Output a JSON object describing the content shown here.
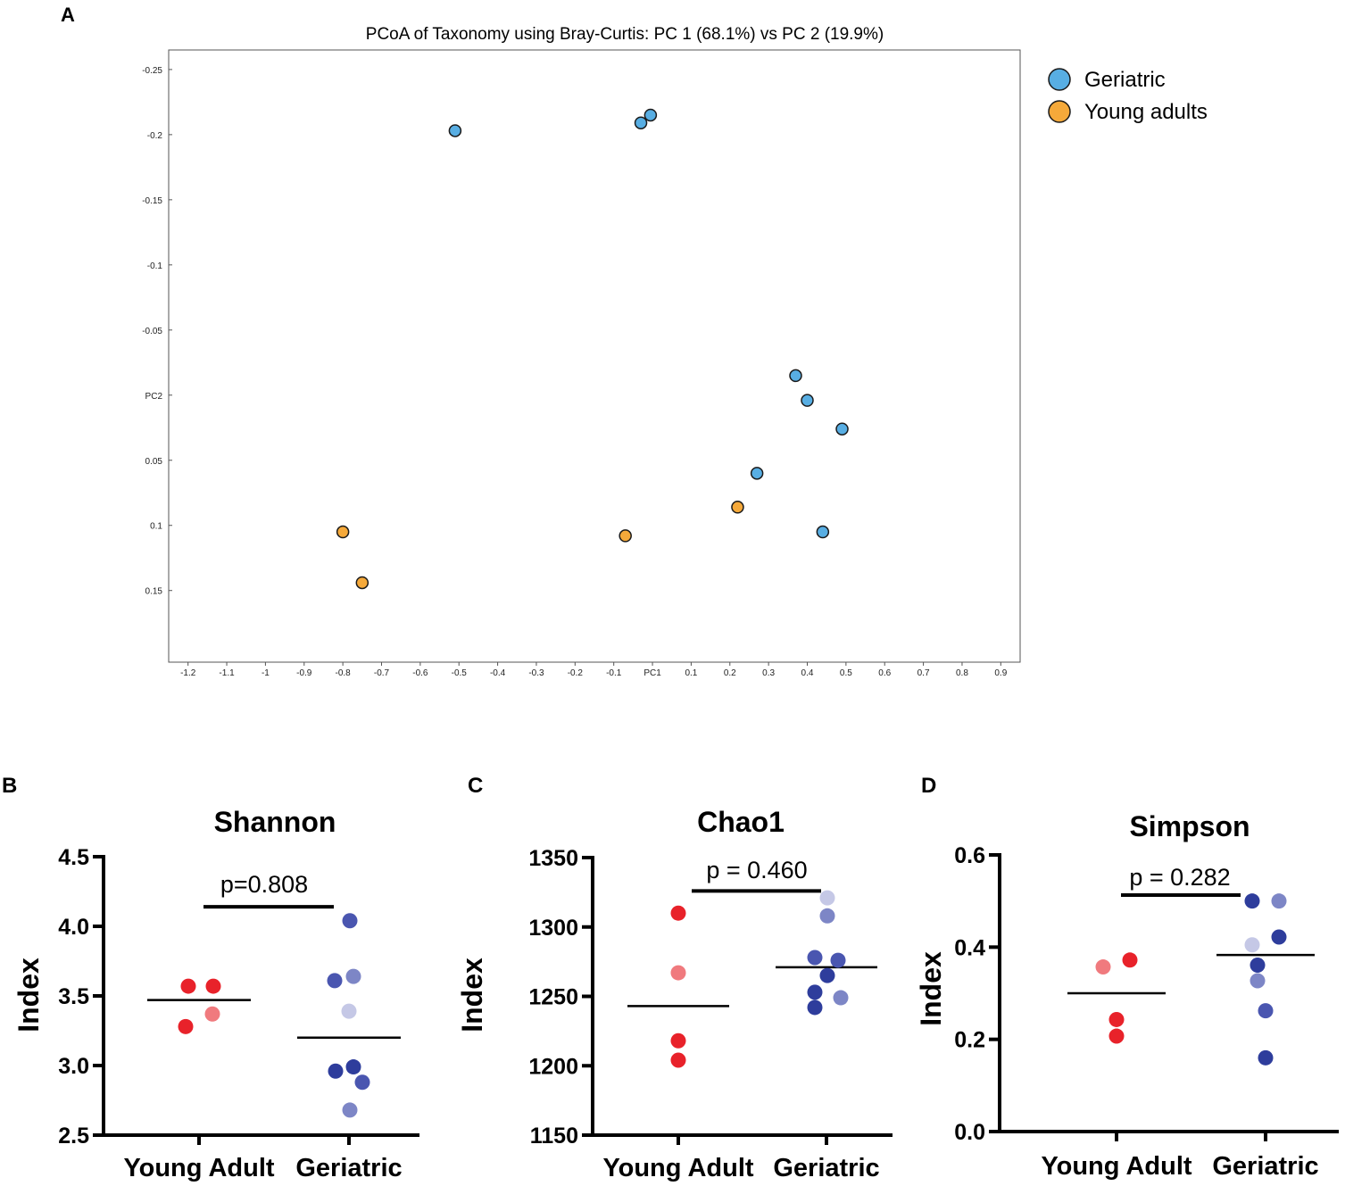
{
  "panels": [
    {
      "letter": "A"
    },
    {
      "letter": "B"
    },
    {
      "letter": "C"
    },
    {
      "letter": "D"
    }
  ],
  "chart_data": [
    {
      "type": "scatter",
      "title": "PCoA of Taxonomy using Bray-Curtis: PC 1 (68.1%) vs PC 2 (19.9%)",
      "xlabel": "PC1",
      "ylabel": "PC2",
      "xlim": [
        -1.25,
        0.95
      ],
      "ylim": [
        -0.265,
        0.205
      ],
      "y_inverted": true,
      "x_ticks": [
        {
          "value": -1.2,
          "label": "-1.2"
        },
        {
          "value": -1.1,
          "label": "-1.1"
        },
        {
          "value": -1.0,
          "label": "-1"
        },
        {
          "value": -0.9,
          "label": "-0.9"
        },
        {
          "value": -0.8,
          "label": "-0.8"
        },
        {
          "value": -0.7,
          "label": "-0.7"
        },
        {
          "value": -0.6,
          "label": "-0.6"
        },
        {
          "value": -0.5,
          "label": "-0.5"
        },
        {
          "value": -0.4,
          "label": "-0.4"
        },
        {
          "value": -0.3,
          "label": "-0.3"
        },
        {
          "value": -0.2,
          "label": "-0.2"
        },
        {
          "value": -0.1,
          "label": "-0.1"
        },
        {
          "value": 0.0,
          "label": "PC1"
        },
        {
          "value": 0.1,
          "label": "0.1"
        },
        {
          "value": 0.2,
          "label": "0.2"
        },
        {
          "value": 0.3,
          "label": "0.3"
        },
        {
          "value": 0.4,
          "label": "0.4"
        },
        {
          "value": 0.5,
          "label": "0.5"
        },
        {
          "value": 0.6,
          "label": "0.6"
        },
        {
          "value": 0.7,
          "label": "0.7"
        },
        {
          "value": 0.8,
          "label": "0.8"
        },
        {
          "value": 0.9,
          "label": "0.9"
        }
      ],
      "y_ticks": [
        {
          "value": -0.25,
          "label": "-0.25"
        },
        {
          "value": -0.2,
          "label": "-0.2"
        },
        {
          "value": -0.15,
          "label": "-0.15"
        },
        {
          "value": -0.1,
          "label": "-0.1"
        },
        {
          "value": -0.05,
          "label": "-0.05"
        },
        {
          "value": 0.0,
          "label": "PC2"
        },
        {
          "value": 0.05,
          "label": "0.05"
        },
        {
          "value": 0.1,
          "label": "0.1"
        },
        {
          "value": 0.15,
          "label": "0.15"
        }
      ],
      "legend_position": "right",
      "series": [
        {
          "name": "Geriatric",
          "color": "#58aee3",
          "points": [
            {
              "x": -0.51,
              "y": -0.203
            },
            {
              "x": -0.03,
              "y": -0.209
            },
            {
              "x": -0.005,
              "y": -0.215
            },
            {
              "x": 0.37,
              "y": -0.015
            },
            {
              "x": 0.4,
              "y": 0.004
            },
            {
              "x": 0.49,
              "y": 0.026
            },
            {
              "x": 0.27,
              "y": 0.06
            },
            {
              "x": 0.44,
              "y": 0.105
            }
          ]
        },
        {
          "name": "Young adults",
          "color": "#f5a93a",
          "points": [
            {
              "x": -0.8,
              "y": 0.105
            },
            {
              "x": -0.75,
              "y": 0.144
            },
            {
              "x": -0.07,
              "y": 0.108
            },
            {
              "x": 0.22,
              "y": 0.086
            }
          ]
        }
      ]
    },
    {
      "type": "scatter",
      "title": "Shannon",
      "ylabel": "Index",
      "categories": [
        "Young Adult",
        "Geriatric"
      ],
      "ylim": [
        2.5,
        4.5
      ],
      "y_ticks": [
        {
          "value": 2.5,
          "label": "2.5"
        },
        {
          "value": 3.0,
          "label": "3.0"
        },
        {
          "value": 3.5,
          "label": "3.5"
        },
        {
          "value": 4.0,
          "label": "4.0"
        },
        {
          "value": 4.5,
          "label": "4.5"
        }
      ],
      "p_value": "p=0.808",
      "bracket_y": 4.14,
      "series": [
        {
          "name": "Young Adult",
          "mean": 3.47,
          "points": [
            {
              "value": 3.57,
              "color": "#e8222a"
            },
            {
              "value": 3.57,
              "color": "#e8222a"
            },
            {
              "value": 3.37,
              "color": "#f07a7e"
            },
            {
              "value": 3.28,
              "color": "#e8222a"
            }
          ]
        },
        {
          "name": "Geriatric",
          "mean": 3.2,
          "points": [
            {
              "value": 4.04,
              "color": "#4a56b0"
            },
            {
              "value": 3.64,
              "color": "#7d86c6"
            },
            {
              "value": 3.61,
              "color": "#4a56b0"
            },
            {
              "value": 3.39,
              "color": "#c5c8e6"
            },
            {
              "value": 2.99,
              "color": "#2e3d9c"
            },
            {
              "value": 2.96,
              "color": "#2e3d9c"
            },
            {
              "value": 2.88,
              "color": "#4a56b0"
            },
            {
              "value": 2.68,
              "color": "#7d86c6"
            }
          ]
        }
      ]
    },
    {
      "type": "scatter",
      "title": "Chao1",
      "ylabel": "Index",
      "categories": [
        "Young Adult",
        "Geriatric"
      ],
      "ylim": [
        1150,
        1350
      ],
      "y_ticks": [
        {
          "value": 1150,
          "label": "1150"
        },
        {
          "value": 1200,
          "label": "1200"
        },
        {
          "value": 1250,
          "label": "1250"
        },
        {
          "value": 1300,
          "label": "1300"
        },
        {
          "value": 1350,
          "label": "1350"
        }
      ],
      "p_value": "p = 0.460",
      "bracket_y": 1326,
      "series": [
        {
          "name": "Young Adult",
          "mean": 1243,
          "points": [
            {
              "value": 1310,
              "color": "#e8222a"
            },
            {
              "value": 1267,
              "color": "#f07a7e"
            },
            {
              "value": 1218,
              "color": "#e8222a"
            },
            {
              "value": 1204,
              "color": "#e8222a"
            }
          ]
        },
        {
          "name": "Geriatric",
          "mean": 1271,
          "points": [
            {
              "value": 1321,
              "color": "#c5c8e6"
            },
            {
              "value": 1308,
              "color": "#7d86c6"
            },
            {
              "value": 1278,
              "color": "#4a56b0"
            },
            {
              "value": 1276,
              "color": "#4a56b0"
            },
            {
              "value": 1265,
              "color": "#2e3d9c"
            },
            {
              "value": 1253,
              "color": "#2e3d9c"
            },
            {
              "value": 1249,
              "color": "#7d86c6"
            },
            {
              "value": 1242,
              "color": "#2e3d9c"
            }
          ]
        }
      ]
    },
    {
      "type": "scatter",
      "title": "Simpson",
      "ylabel": "Index",
      "categories": [
        "Young Adult",
        "Geriatric"
      ],
      "ylim": [
        0.0,
        0.6
      ],
      "y_ticks": [
        {
          "value": 0.0,
          "label": "0.0"
        },
        {
          "value": 0.2,
          "label": "0.2"
        },
        {
          "value": 0.4,
          "label": "0.4"
        },
        {
          "value": 0.6,
          "label": "0.6"
        }
      ],
      "p_value": "p = 0.282",
      "bracket_y": 0.513,
      "series": [
        {
          "name": "Young Adult",
          "mean": 0.3,
          "points": [
            {
              "value": 0.372,
              "color": "#e8222a"
            },
            {
              "value": 0.357,
              "color": "#f07a7e"
            },
            {
              "value": 0.243,
              "color": "#e8222a"
            },
            {
              "value": 0.207,
              "color": "#e8222a"
            }
          ]
        },
        {
          "name": "Geriatric",
          "mean": 0.383,
          "points": [
            {
              "value": 0.5,
              "color": "#2e3d9c"
            },
            {
              "value": 0.5,
              "color": "#7d86c6"
            },
            {
              "value": 0.422,
              "color": "#2e3d9c"
            },
            {
              "value": 0.405,
              "color": "#c5c8e6"
            },
            {
              "value": 0.361,
              "color": "#2e3d9c"
            },
            {
              "value": 0.327,
              "color": "#7d86c6"
            },
            {
              "value": 0.262,
              "color": "#4a56b0"
            },
            {
              "value": 0.16,
              "color": "#2e3d9c"
            }
          ]
        }
      ]
    }
  ]
}
